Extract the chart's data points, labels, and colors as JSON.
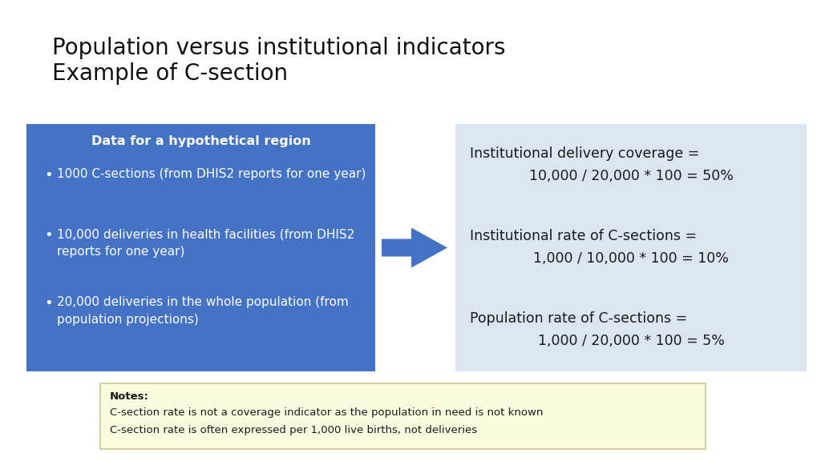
{
  "title_line1": "Population versus institutional indicators",
  "title_line2": "Example of C-section",
  "title_fontsize": 20,
  "bg_color": "#ffffff",
  "left_box_color": "#4472C4",
  "right_box_color": "#DCE6F1",
  "note_box_color": "#FEFAE0",
  "left_box_title": "Data for a hypothetical region",
  "left_box_bullet1": "1000 C-sections (from DHIS2 reports for one year)",
  "left_box_bullet2_line1": "10,000 deliveries in health facilities (from DHIS2",
  "left_box_bullet2_line2": "reports for one year)",
  "left_box_bullet3_line1": "20,000 deliveries in the whole population (from",
  "left_box_bullet3_line2": "population projections)",
  "right_box_lines": [
    [
      "Institutional delivery coverage =",
      "10,000 / 20,000 * 100 = 50%"
    ],
    [
      "Institutional rate of C-sections =",
      "1,000 / 10,000 * 100 = 10%"
    ],
    [
      "Population rate of C-sections =",
      "1,000 / 20,000 * 100 = 5%"
    ]
  ],
  "notes_label": "Notes:",
  "notes_lines": [
    "C-section rate is not a coverage indicator as the population in need is not known",
    "C-section rate is often expressed per 1,000 live births, not deliveries"
  ],
  "arrow_color": "#4472C4",
  "left_text_color": "#ffffff",
  "right_text_color": "#1a1a1a",
  "note_text_color": "#1a1a1a",
  "note_border_color": "#c8c890"
}
